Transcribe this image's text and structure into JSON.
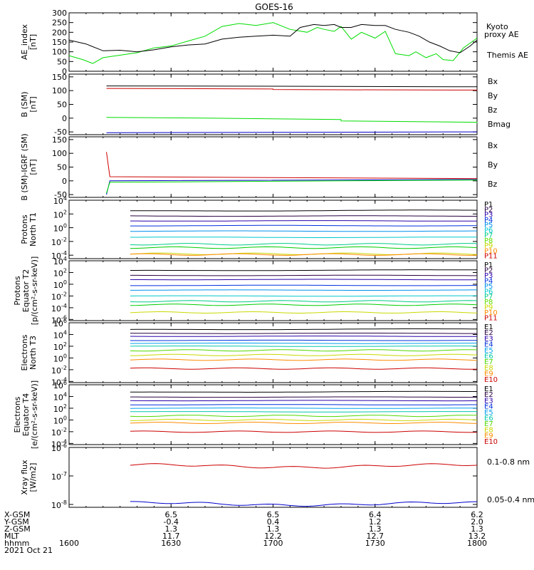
{
  "title": "GOES-16",
  "chart_data": [
    {
      "type": "line",
      "ylabel_lines": [
        "AE_index",
        "[nT]"
      ],
      "ylim": [
        0,
        300
      ],
      "yticks": [
        "300",
        "250",
        "200",
        "150",
        "100",
        "50",
        "0"
      ],
      "ytick_values": [
        300,
        250,
        200,
        150,
        100,
        50,
        0
      ],
      "series": [
        {
          "name": "Kyoto proxy AE",
          "color": "#00dd00",
          "x": [
            1600,
            1604,
            1607,
            1610,
            1614,
            1620,
            1625,
            1630,
            1635,
            1640,
            1645,
            1650,
            1655,
            1700,
            1705,
            1710,
            1713,
            1715,
            1718,
            1720,
            1723,
            1726,
            1730,
            1733,
            1736,
            1740,
            1742,
            1745,
            1748,
            1750,
            1753,
            1756,
            1800
          ],
          "y": [
            80,
            60,
            40,
            70,
            80,
            95,
            120,
            130,
            155,
            180,
            230,
            245,
            235,
            250,
            215,
            200,
            225,
            215,
            205,
            230,
            165,
            200,
            170,
            205,
            90,
            80,
            100,
            70,
            90,
            60,
            55,
            120,
            170
          ]
        },
        {
          "name": "Themis AE",
          "color": "#000000",
          "x": [
            1600,
            1605,
            1610,
            1615,
            1620,
            1625,
            1630,
            1635,
            1640,
            1645,
            1650,
            1655,
            1700,
            1705,
            1708,
            1712,
            1715,
            1718,
            1720,
            1723,
            1726,
            1730,
            1733,
            1736,
            1740,
            1743,
            1746,
            1749,
            1752,
            1755,
            1758,
            1800
          ],
          "y": [
            160,
            140,
            105,
            108,
            100,
            110,
            125,
            135,
            140,
            165,
            175,
            180,
            185,
            180,
            225,
            240,
            235,
            240,
            225,
            225,
            240,
            235,
            235,
            215,
            200,
            180,
            150,
            130,
            105,
            95,
            130,
            160
          ]
        }
      ]
    },
    {
      "type": "line",
      "ylabel_lines": [
        "B (SM)",
        "[nT]"
      ],
      "ylim": [
        -60,
        160
      ],
      "yticks": [
        "150",
        "100",
        "50",
        "0",
        "-50"
      ],
      "ytick_values": [
        150,
        100,
        50,
        0,
        -50
      ],
      "series": [
        {
          "name": "Bx",
          "color": "#0000cc",
          "x": [
            1611,
            1800
          ],
          "y": [
            -53,
            -50
          ]
        },
        {
          "name": "By",
          "color": "#00dd00",
          "x": [
            1611,
            1640,
            1680,
            1720,
            1760,
            1800
          ],
          "y": [
            3,
            0,
            -5,
            -10,
            -15,
            -18
          ]
        },
        {
          "name": "Bz",
          "color": "#cc0000",
          "x": [
            1611,
            1640,
            1660,
            1700,
            1720,
            1760,
            1800
          ],
          "y": [
            108,
            107,
            106,
            104,
            103,
            102,
            101
          ]
        },
        {
          "name": "Bmag",
          "color": "#000000",
          "x": [
            1611,
            1700,
            1800
          ],
          "y": [
            117,
            116,
            114
          ]
        }
      ]
    },
    {
      "type": "line",
      "ylabel_lines": [
        "B (SM)-IGRF (SM)",
        "[nT]"
      ],
      "ylim": [
        -60,
        160
      ],
      "yticks": [
        "150",
        "100",
        "50",
        "0",
        "-50"
      ],
      "ytick_values": [
        150,
        100,
        50,
        0,
        -50
      ],
      "series": [
        {
          "name": "Bx",
          "color": "#0000cc",
          "x": [
            1611,
            1612,
            1800
          ],
          "y": [
            -50,
            0,
            5
          ]
        },
        {
          "name": "By",
          "color": "#00dd00",
          "x": [
            1611,
            1612,
            1800
          ],
          "y": [
            -45,
            -5,
            3
          ]
        },
        {
          "name": "Bz",
          "color": "#cc0000",
          "x": [
            1611,
            1612,
            1700,
            1800
          ],
          "y": [
            105,
            15,
            12,
            8
          ]
        }
      ]
    },
    {
      "type": "line",
      "log": true,
      "ylabel_lines": [
        "Protons",
        "North T1"
      ],
      "ylim_exp": [
        -4.5,
        4
      ],
      "ytick_exps": [
        4,
        2,
        0,
        -2,
        -4
      ],
      "legend_title": "",
      "legend": [
        "P1",
        "P2",
        "P3",
        "P4",
        "P5",
        "P6",
        "P7",
        "P8",
        "P9",
        "P10",
        "P11"
      ],
      "legend_colors": [
        "#000000",
        "#2a0040",
        "#2a00aa",
        "#0030dd",
        "#0090ee",
        "#00c8cc",
        "#00cc88",
        "#60e000",
        "#c8d800",
        "#ff8c00",
        "#cc0000"
      ],
      "series_exps": [
        2.4,
        1.7,
        1.0,
        0.3,
        -0.5,
        -1.4,
        -2.4,
        -2.9,
        -3.8,
        -3.9
      ],
      "series_colors": [
        "#000000",
        "#2a0040",
        "#2a00aa",
        "#0030dd",
        "#0090ee",
        "#00c8cc",
        "#00cc88",
        "#00cc00",
        "#c8d800",
        "#ff8c00"
      ]
    },
    {
      "type": "line",
      "log": true,
      "ylabel_lines": [
        "Protons",
        "Equator T2",
        "[p/(cm²-s-sr-keV)]"
      ],
      "ylim_exp": [
        -6.2,
        4
      ],
      "ytick_exps": [
        4,
        2,
        0,
        -2,
        -4,
        -6
      ],
      "legend": [
        "P1",
        "P2",
        "P3",
        "P4",
        "P5",
        "P6",
        "P7",
        "P8",
        "P9",
        "P10",
        "P11"
      ],
      "legend_colors": [
        "#000000",
        "#2a0040",
        "#2a00aa",
        "#0030dd",
        "#0090ee",
        "#00c8cc",
        "#00cc88",
        "#60e000",
        "#c8d800",
        "#ff8c00",
        "#cc0000"
      ],
      "series_exps": [
        2.3,
        1.5,
        0.8,
        -0.2,
        -1.0,
        -2.0,
        -2.9,
        -3.5,
        -4.8
      ],
      "series_colors": [
        "#000000",
        "#2a0040",
        "#2a00aa",
        "#0030dd",
        "#0090ee",
        "#00c8cc",
        "#00cc88",
        "#00cc00",
        "#c8d800"
      ]
    },
    {
      "type": "line",
      "log": true,
      "ylabel_lines": [
        "Electrons",
        "North T3"
      ],
      "ylim_exp": [
        -4.2,
        6
      ],
      "ytick_exps": [
        6,
        4,
        2,
        0,
        -2,
        -4
      ],
      "legend": [
        "E1",
        "E2",
        "E3",
        "E4",
        "E5",
        "E6",
        "E7",
        "E8",
        "E9",
        "E10"
      ],
      "legend_colors": [
        "#000000",
        "#2a0040",
        "#2a00aa",
        "#0030dd",
        "#00a0ee",
        "#00c8aa",
        "#50d800",
        "#c8d800",
        "#ff8c00",
        "#cc0000"
      ],
      "series_exps": [
        4.8,
        4.2,
        3.7,
        3.0,
        2.5,
        2.0,
        1.3,
        0.5,
        -0.3,
        -1.8
      ],
      "series_colors": [
        "#000000",
        "#2a0040",
        "#2a00aa",
        "#0030dd",
        "#00a0ee",
        "#00c8aa",
        "#50d800",
        "#c8d800",
        "#ff8c00",
        "#cc0000"
      ]
    },
    {
      "type": "line",
      "log": true,
      "ylabel_lines": [
        "Electrons",
        "Equator T4",
        "[e/(cm²-s-sr-keV)]"
      ],
      "ylim_exp": [
        -4.2,
        6
      ],
      "ytick_exps": [
        6,
        4,
        2,
        0,
        -2,
        -4
      ],
      "legend": [
        "E1",
        "E2",
        "E3",
        "E4",
        "E5",
        "E6",
        "E7",
        "E8",
        "E9",
        "E10"
      ],
      "legend_colors": [
        "#000000",
        "#2a0040",
        "#2a00aa",
        "#0030dd",
        "#00a0ee",
        "#00c8aa",
        "#50d800",
        "#c8d800",
        "#ff8c00",
        "#cc0000"
      ],
      "series_exps": [
        4.7,
        3.9,
        3.3,
        2.6,
        2.0,
        1.4,
        0.7,
        0.0,
        -0.5,
        -2.0
      ],
      "series_colors": [
        "#000000",
        "#2a0040",
        "#2a00aa",
        "#0030dd",
        "#00a0ee",
        "#00c8aa",
        "#50d800",
        "#c8d800",
        "#ff8c00",
        "#cc0000"
      ]
    },
    {
      "type": "line",
      "log": true,
      "ylabel_lines": [
        "Xray flux",
        "[W/m2]"
      ],
      "ylim_exp": [
        -8.1,
        -6
      ],
      "ytick_exps": [
        -6,
        -7,
        -8
      ],
      "series": [
        {
          "name": "0.1-0.8 nm",
          "color": "#cc0000",
          "exp": -6.65
        },
        {
          "name": "0.05-0.4 nm",
          "color": "#0000cc",
          "exp": -7.98
        }
      ]
    }
  ],
  "xaxis": {
    "ticks": [
      "1600",
      "1630",
      "1700",
      "1730",
      "1800"
    ],
    "tick_values": [
      1600,
      1630,
      1700,
      1730,
      1800
    ],
    "rows": [
      {
        "label": "X-GSM",
        "values": [
          "",
          "6.5",
          "6.5",
          "6.4",
          "6.2"
        ]
      },
      {
        "label": "Y-GSM",
        "values": [
          "",
          "-0.4",
          "0.4",
          "1.2",
          "2.0"
        ]
      },
      {
        "label": "Z-GSM",
        "values": [
          "",
          "1.3",
          "1.3",
          "1.3",
          "1.3"
        ]
      },
      {
        "label": "MLT",
        "values": [
          "",
          "11.7",
          "12.2",
          "12.7",
          "13.2"
        ]
      },
      {
        "label": "hhmm",
        "values": [
          "1600",
          "1630",
          "1700",
          "1730",
          "1800"
        ]
      }
    ],
    "date": "2021 Oct 21"
  },
  "side_labels": {
    "ae": [
      "Kyoto",
      "proxy AE",
      "Themis AE"
    ],
    "b": [
      "Bx",
      "By",
      "Bz",
      "Bmag"
    ],
    "bdiff": [
      "Bx",
      "By",
      "Bz"
    ],
    "xray": [
      "0.1-0.8 nm",
      "0.05-0.4 nm"
    ]
  },
  "colors": {
    "bx": "#0000cc",
    "by": "#00dd00",
    "bz": "#cc0000",
    "bmag": "#000000",
    "kyoto": "#00dd00",
    "themis": "#000000"
  }
}
